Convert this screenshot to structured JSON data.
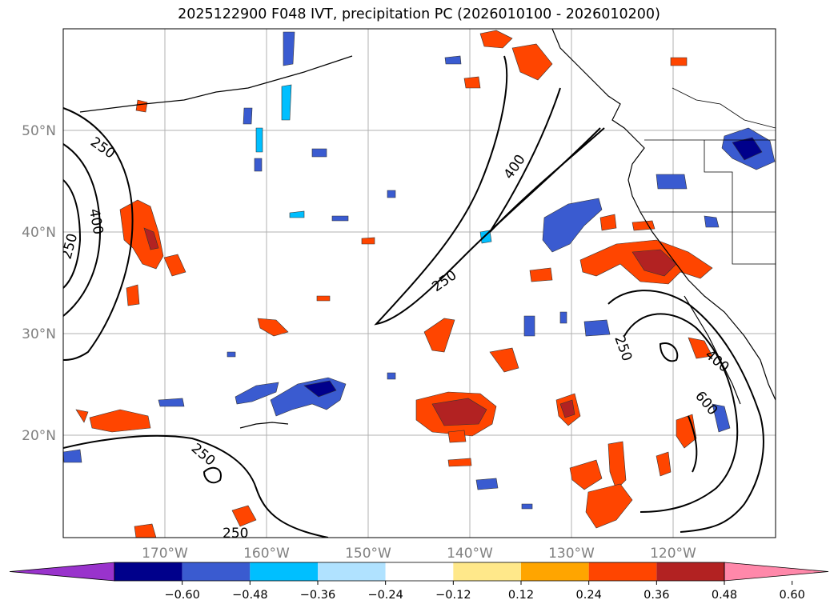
{
  "title": "2025122900 F048 IVT, precipitation PC (2026010100 - 2026010200)",
  "lat_labels": [
    "50°N",
    "40°N",
    "30°N",
    "20°N"
  ],
  "lon_labels": [
    "170°W",
    "160°W",
    "150°W",
    "140°W",
    "130°W",
    "120°W"
  ],
  "contour_labels": [
    "250",
    "400",
    "250",
    "400",
    "250",
    "250",
    "400",
    "600",
    "250",
    "250"
  ],
  "colorbar": {
    "ticks": [
      "−0.60",
      "−0.48",
      "−0.36",
      "−0.24",
      "−0.12",
      "0.12",
      "0.24",
      "0.36",
      "0.48",
      "0.60"
    ],
    "colors": [
      "#9933cc",
      "#00008b",
      "#3a5bd0",
      "#00bfff",
      "#b0e2ff",
      "#ffffff",
      "#ffe88a",
      "#ffa500",
      "#ff4500",
      "#b22222",
      "#ff88aa"
    ]
  },
  "colors": {
    "axis_label": "#808080",
    "grid": "#b0b0b0",
    "contour": "#000000"
  }
}
